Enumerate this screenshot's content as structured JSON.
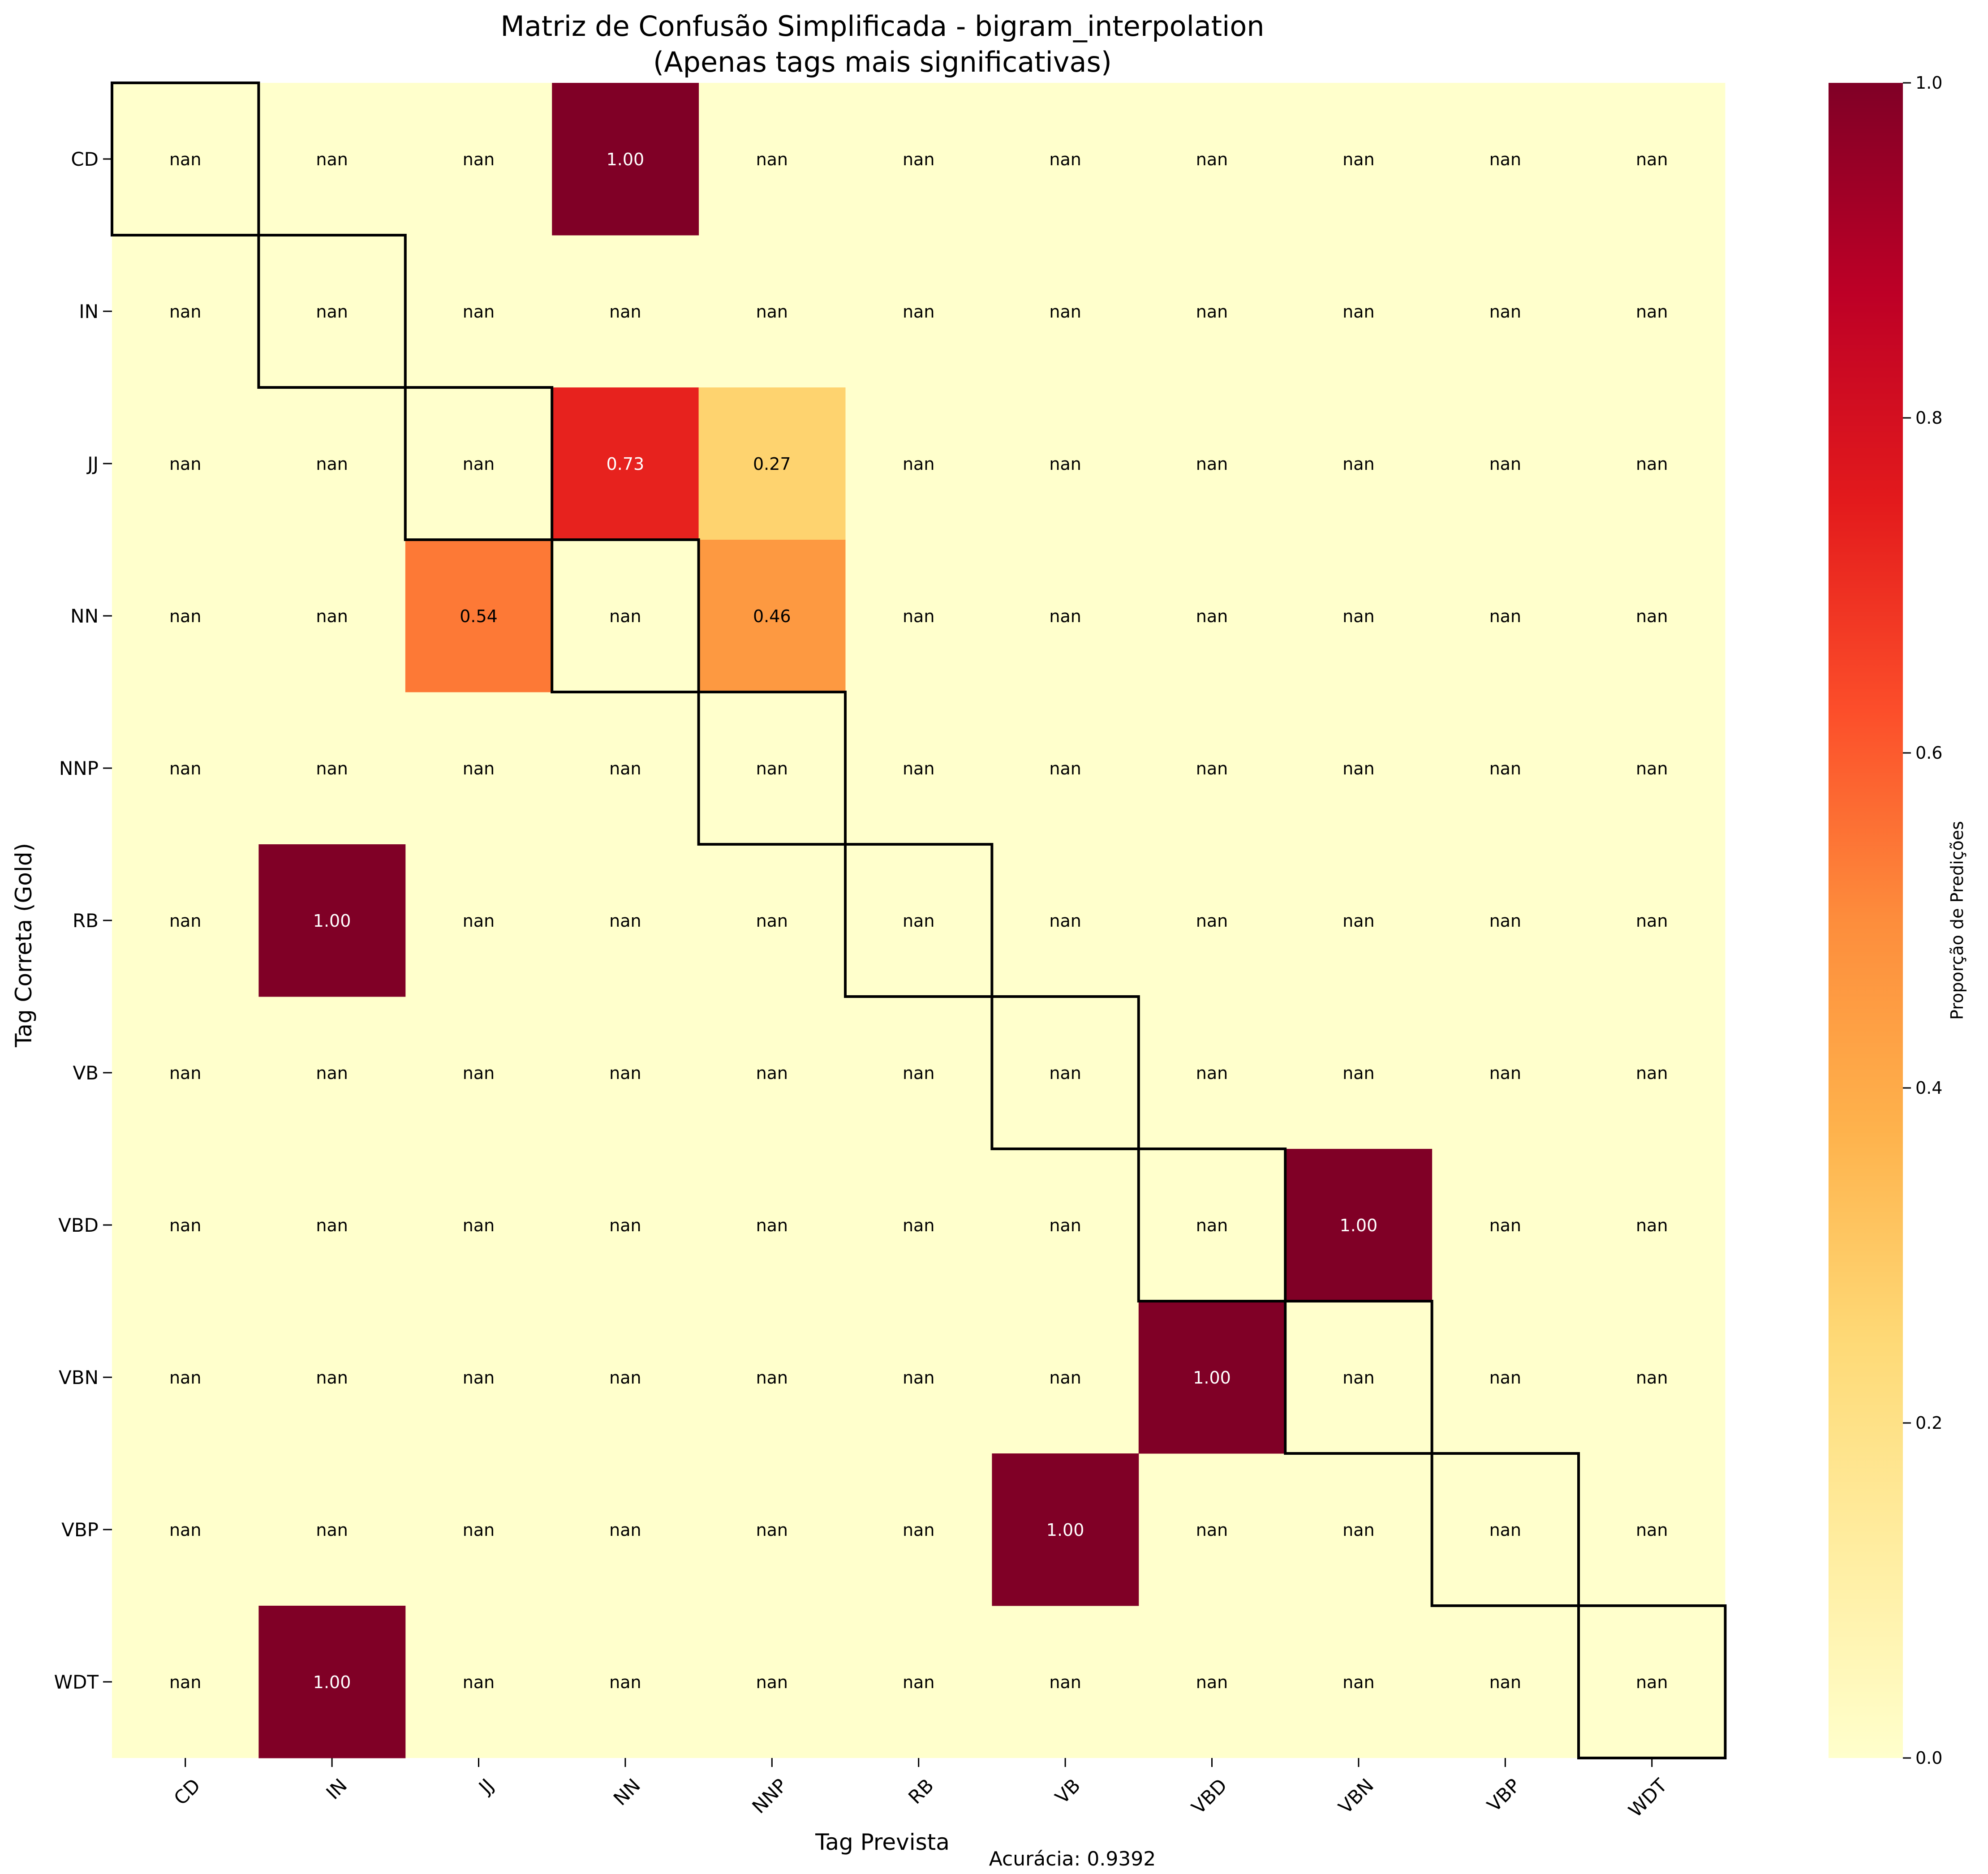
{
  "chart_data": {
    "type": "heatmap",
    "title": "Matriz de Confusão Simplificada - bigram_interpolation",
    "subtitle": "(Apenas tags mais significativas)",
    "xlabel": "Tag Prevista",
    "ylabel": "Tag Correta (Gold)",
    "x_categories": [
      "CD",
      "IN",
      "JJ",
      "NN",
      "NNP",
      "RB",
      "VB",
      "VBD",
      "VBN",
      "VBP",
      "WDT"
    ],
    "y_categories": [
      "CD",
      "IN",
      "JJ",
      "NN",
      "NNP",
      "RB",
      "VB",
      "VBD",
      "VBN",
      "VBP",
      "WDT"
    ],
    "values": [
      [
        "nan",
        "nan",
        "nan",
        1.0,
        "nan",
        "nan",
        "nan",
        "nan",
        "nan",
        "nan",
        "nan"
      ],
      [
        "nan",
        "nan",
        "nan",
        "nan",
        "nan",
        "nan",
        "nan",
        "nan",
        "nan",
        "nan",
        "nan"
      ],
      [
        "nan",
        "nan",
        "nan",
        0.73,
        0.27,
        "nan",
        "nan",
        "nan",
        "nan",
        "nan",
        "nan"
      ],
      [
        "nan",
        "nan",
        0.54,
        "nan",
        0.46,
        "nan",
        "nan",
        "nan",
        "nan",
        "nan",
        "nan"
      ],
      [
        "nan",
        "nan",
        "nan",
        "nan",
        "nan",
        "nan",
        "nan",
        "nan",
        "nan",
        "nan",
        "nan"
      ],
      [
        "nan",
        1.0,
        "nan",
        "nan",
        "nan",
        "nan",
        "nan",
        "nan",
        "nan",
        "nan",
        "nan"
      ],
      [
        "nan",
        "nan",
        "nan",
        "nan",
        "nan",
        "nan",
        "nan",
        "nan",
        "nan",
        "nan",
        "nan"
      ],
      [
        "nan",
        "nan",
        "nan",
        "nan",
        "nan",
        "nan",
        "nan",
        "nan",
        1.0,
        "nan",
        "nan"
      ],
      [
        "nan",
        "nan",
        "nan",
        "nan",
        "nan",
        "nan",
        "nan",
        1.0,
        "nan",
        "nan",
        "nan"
      ],
      [
        "nan",
        "nan",
        "nan",
        "nan",
        "nan",
        "nan",
        1.0,
        "nan",
        "nan",
        "nan",
        "nan"
      ],
      [
        "nan",
        1.0,
        "nan",
        "nan",
        "nan",
        "nan",
        "nan",
        "nan",
        "nan",
        "nan",
        "nan"
      ]
    ],
    "value_format": "0.00",
    "missing_label": "nan",
    "diagonal_outlined": true,
    "colormap": "YlOrRd",
    "colormap_stops": [
      "#ffffcc",
      "#ffeda0",
      "#fed976",
      "#feb24c",
      "#fd8d3c",
      "#fc4e2a",
      "#e31a1c",
      "#bd0026",
      "#800026"
    ],
    "colorbar": {
      "label": "Proporção de Predições",
      "range": [
        0,
        1
      ],
      "ticks": [
        "0.0",
        "0.2",
        "0.4",
        "0.6",
        "0.8",
        "1.0"
      ]
    },
    "footer": "Acurácia: 0.9392"
  }
}
